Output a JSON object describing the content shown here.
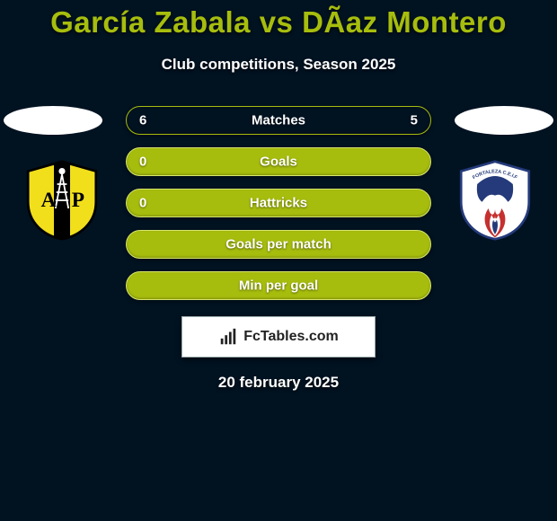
{
  "title": {
    "left": "García Zabala",
    "vs": "vs",
    "right": "DÃ­az Montero",
    "color": "#a7bd0d",
    "fontsize": 33
  },
  "subtitle": {
    "text": "Club competitions, Season 2025",
    "color": "#ffffff",
    "fontsize": 17
  },
  "background_color": "#011221",
  "accent_color": "#a7bd0d",
  "ellipses": {
    "color": "#ffffff",
    "width": 110,
    "height": 32
  },
  "crests": {
    "left": {
      "bg": "#f2df1c",
      "stripe": "#000000",
      "letters": "AP",
      "letters_color": "#000000",
      "derrick_color": "#000000"
    },
    "right": {
      "bg": "#ffffff",
      "face_color": "#243a7a",
      "flame_colors": [
        "#c63030",
        "#ffffff",
        "#243a7a"
      ],
      "arc_text": "FORTALEZA C.E.I.F"
    }
  },
  "bars": {
    "type": "bar",
    "bar_bg": "#a7bd0d",
    "bar_border": "#d8e66b",
    "special_bg": "#011221",
    "special_border": "#a7bd0d",
    "text_color": "#ffffff",
    "label_fontsize": 15,
    "rows": [
      {
        "label": "Matches",
        "left": "6",
        "right": "5",
        "special": true
      },
      {
        "label": "Goals",
        "left": "0",
        "right": "",
        "special": false
      },
      {
        "label": "Hattricks",
        "left": "0",
        "right": "",
        "special": false
      },
      {
        "label": "Goals per match",
        "left": "",
        "right": "",
        "special": false
      },
      {
        "label": "Min per goal",
        "left": "",
        "right": "",
        "special": false
      }
    ]
  },
  "brand": {
    "text": "FcTables.com",
    "box_bg": "#ffffff",
    "text_color": "#222222",
    "icon_color": "#222222",
    "fontsize": 16
  },
  "date": {
    "text": "20 february 2025",
    "color": "#ffffff",
    "fontsize": 17
  }
}
